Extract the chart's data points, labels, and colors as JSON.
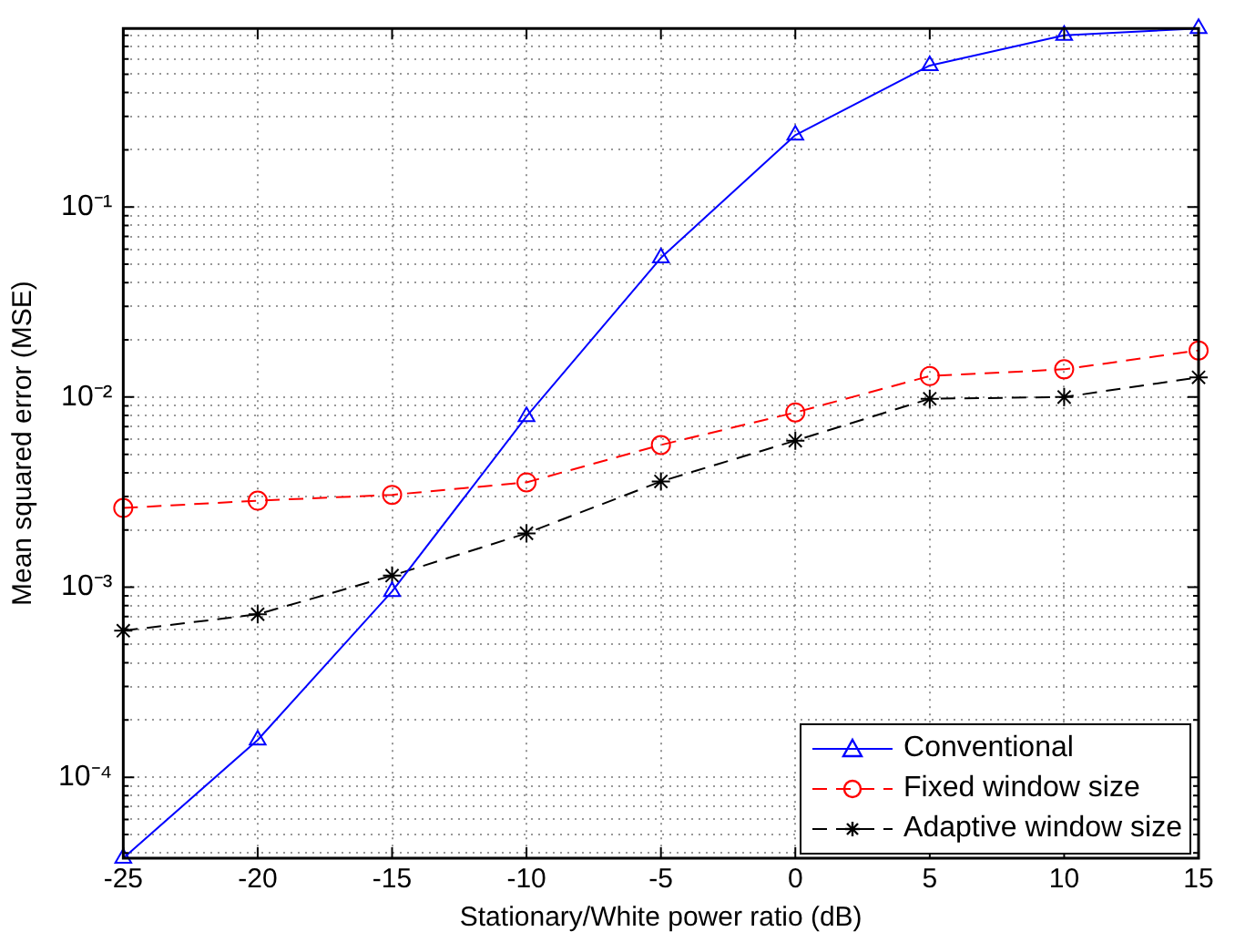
{
  "chart_data": {
    "type": "line",
    "xlabel": "Stationary/White power ratio (dB)",
    "ylabel": "Mean squared error (MSE)",
    "x": [
      -25,
      -20,
      -15,
      -10,
      -5,
      0,
      5,
      10,
      15
    ],
    "xlim": [
      -25,
      15
    ],
    "xticks": [
      -25,
      -20,
      -15,
      -10,
      -5,
      0,
      5,
      10,
      15
    ],
    "log": "y",
    "ylim": [
      3.75e-05,
      0.87
    ],
    "yticks": [
      {
        "value": 4e-05,
        "label": null
      },
      {
        "value": 5e-05,
        "label": null
      },
      {
        "value": 6e-05,
        "label": null
      },
      {
        "value": 7e-05,
        "label": null
      },
      {
        "value": 8e-05,
        "label": null
      },
      {
        "value": 9e-05,
        "label": null
      },
      {
        "value": 0.0001,
        "label": "10⁻⁴"
      },
      {
        "value": 0.0002,
        "label": null
      },
      {
        "value": 0.0003,
        "label": null
      },
      {
        "value": 0.0004,
        "label": null
      },
      {
        "value": 0.0005,
        "label": null
      },
      {
        "value": 0.0006,
        "label": null
      },
      {
        "value": 0.0007,
        "label": null
      },
      {
        "value": 0.0008,
        "label": null
      },
      {
        "value": 0.0009,
        "label": null
      },
      {
        "value": 0.001,
        "label": "10⁻³"
      },
      {
        "value": 0.002,
        "label": null
      },
      {
        "value": 0.003,
        "label": null
      },
      {
        "value": 0.004,
        "label": null
      },
      {
        "value": 0.005,
        "label": null
      },
      {
        "value": 0.006,
        "label": null
      },
      {
        "value": 0.007,
        "label": null
      },
      {
        "value": 0.008,
        "label": null
      },
      {
        "value": 0.009,
        "label": null
      },
      {
        "value": 0.01,
        "label": "10⁻²"
      },
      {
        "value": 0.02,
        "label": null
      },
      {
        "value": 0.03,
        "label": null
      },
      {
        "value": 0.04,
        "label": null
      },
      {
        "value": 0.05,
        "label": null
      },
      {
        "value": 0.06,
        "label": null
      },
      {
        "value": 0.07,
        "label": null
      },
      {
        "value": 0.08,
        "label": null
      },
      {
        "value": 0.09,
        "label": null
      },
      {
        "value": 0.1,
        "label": "10⁻¹"
      },
      {
        "value": 0.2,
        "label": null
      },
      {
        "value": 0.3,
        "label": null
      },
      {
        "value": 0.4,
        "label": null
      },
      {
        "value": 0.5,
        "label": null
      },
      {
        "value": 0.6,
        "label": null
      },
      {
        "value": 0.7,
        "label": null
      },
      {
        "value": 0.8,
        "label": null
      }
    ],
    "grid": true,
    "legend": "bottom right",
    "series": [
      {
        "name": "Conventional",
        "color": "#0000ff",
        "marker": "triangle",
        "line_style": "solid",
        "values": [
          3.75e-05,
          0.000157,
          0.00095,
          0.0079,
          0.054,
          0.239,
          0.555,
          0.8,
          0.87
        ]
      },
      {
        "name": "Fixed window size",
        "color": "#ff0000",
        "marker": "circle",
        "line_style": "dashed",
        "values": [
          0.00261,
          0.00285,
          0.00306,
          0.00356,
          0.0056,
          0.0083,
          0.0129,
          0.014,
          0.0176
        ]
      },
      {
        "name": "Adaptive window size",
        "color": "#000000",
        "marker": "cross",
        "line_style": "dashed",
        "values": [
          0.00059,
          0.00072,
          0.00115,
          0.00192,
          0.0036,
          0.0059,
          0.0098,
          0.01,
          0.0127
        ]
      }
    ]
  }
}
